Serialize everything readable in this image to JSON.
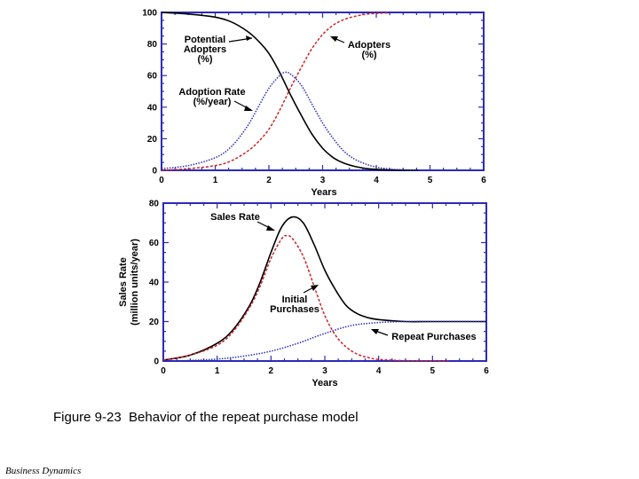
{
  "caption": "Figure 9-23  Behavior of the repeat purchase model",
  "footer": "Business Dynamics",
  "colors": {
    "frame": "#2b2bb8",
    "black": "#000000",
    "red": "#cc2222",
    "blue": "#2b2bb8"
  },
  "chart_data": [
    {
      "type": "line",
      "xlabel": "Years",
      "ylabel": "",
      "xlim": [
        0,
        6
      ],
      "ylim": [
        0,
        100
      ],
      "x_ticks": [
        "0",
        "1",
        "2",
        "3",
        "4",
        "5",
        "6"
      ],
      "y_ticks": [
        "0",
        "20",
        "40",
        "60",
        "80",
        "100"
      ],
      "series": [
        {
          "name": "Potential Adopters (%)",
          "color": "black",
          "style": "solid",
          "x": [
            0,
            0.5,
            1.0,
            1.3,
            1.6,
            1.8,
            2.0,
            2.2,
            2.4,
            2.6,
            2.8,
            3.0,
            3.2,
            3.4,
            3.6,
            3.8,
            4.0,
            4.2,
            4.4,
            4.6,
            4.8
          ],
          "y": [
            100,
            99,
            97,
            94,
            88,
            82,
            74,
            62,
            48,
            35,
            23,
            14,
            8,
            4.5,
            2.5,
            1.2,
            0.6,
            0.3,
            0.1,
            0.05,
            0
          ]
        },
        {
          "name": "Adopters (%)",
          "color": "red",
          "style": "dashed",
          "x": [
            0,
            0.5,
            1.0,
            1.3,
            1.6,
            1.8,
            2.0,
            2.2,
            2.4,
            2.6,
            2.8,
            3.0,
            3.2,
            3.4,
            3.6,
            3.8,
            4.0,
            4.2
          ],
          "y": [
            0,
            1,
            3,
            6,
            12,
            18,
            26,
            38,
            52,
            65,
            77,
            86,
            92,
            95.5,
            97.5,
            98.8,
            99.4,
            99.7
          ]
        },
        {
          "name": "Adoption Rate (%/year)",
          "color": "blue",
          "style": "dotted",
          "x": [
            0,
            0.5,
            1.0,
            1.3,
            1.6,
            1.8,
            2.0,
            2.2,
            2.3,
            2.4,
            2.6,
            2.8,
            3.0,
            3.2,
            3.4,
            3.6,
            3.8,
            4.0,
            4.2,
            4.4,
            4.6,
            4.8
          ],
          "y": [
            1,
            3,
            8,
            15,
            28,
            40,
            52,
            60,
            62,
            61,
            54,
            42,
            30,
            20,
            12,
            7,
            4,
            2,
            1,
            0.5,
            0.2,
            0
          ]
        }
      ],
      "annotations": [
        {
          "lines": [
            "Potential",
            "Adopters",
            "(%)"
          ]
        },
        {
          "lines": [
            "Adopters",
            "(%)"
          ]
        },
        {
          "lines": [
            "Adoption Rate",
            "(%/year)"
          ]
        }
      ]
    },
    {
      "type": "line",
      "xlabel": "Years",
      "ylabel_lines": [
        "Sales Rate",
        "(million units/year)"
      ],
      "xlim": [
        0,
        6
      ],
      "ylim": [
        0,
        80
      ],
      "x_ticks": [
        "0",
        "1",
        "2",
        "3",
        "4",
        "5",
        "6"
      ],
      "y_ticks": [
        "0",
        "20",
        "40",
        "60",
        "80"
      ],
      "series": [
        {
          "name": "Sales Rate",
          "color": "black",
          "style": "solid",
          "x": [
            0,
            0.5,
            1.0,
            1.3,
            1.6,
            1.8,
            2.0,
            2.2,
            2.4,
            2.6,
            2.8,
            3.0,
            3.2,
            3.4,
            3.6,
            3.8,
            4.0,
            4.5,
            5.0,
            6.0
          ],
          "y": [
            0.5,
            3,
            9,
            16,
            28,
            40,
            55,
            68,
            73,
            70,
            59,
            46,
            36,
            28,
            24,
            22,
            21,
            20,
            20,
            20
          ]
        },
        {
          "name": "Initial Purchases",
          "color": "red",
          "style": "dashed",
          "x": [
            0,
            0.5,
            1.0,
            1.3,
            1.6,
            1.8,
            2.0,
            2.2,
            2.3,
            2.4,
            2.6,
            2.8,
            3.0,
            3.2,
            3.4,
            3.6,
            3.8,
            4.0,
            4.5,
            5.0,
            5.3
          ],
          "y": [
            0.5,
            3,
            8,
            15,
            27,
            38,
            52,
            62,
            63.5,
            62,
            53,
            38,
            23,
            13,
            7,
            3.5,
            1.8,
            0.8,
            0.2,
            0.05,
            0
          ]
        },
        {
          "name": "Repeat Purchases",
          "color": "blue",
          "style": "dotted",
          "x": [
            0,
            0.5,
            1.0,
            1.5,
            2.0,
            2.5,
            3.0,
            3.5,
            4.0,
            4.5,
            5.0,
            5.5,
            6.0
          ],
          "y": [
            0,
            0.3,
            1,
            2.5,
            5,
            9,
            14,
            18,
            19.5,
            20,
            20,
            20,
            20
          ]
        }
      ],
      "annotations": [
        {
          "lines": [
            "Sales Rate"
          ]
        },
        {
          "lines": [
            "Initial",
            "Purchases"
          ]
        },
        {
          "lines": [
            "Repeat Purchases"
          ]
        }
      ]
    }
  ]
}
